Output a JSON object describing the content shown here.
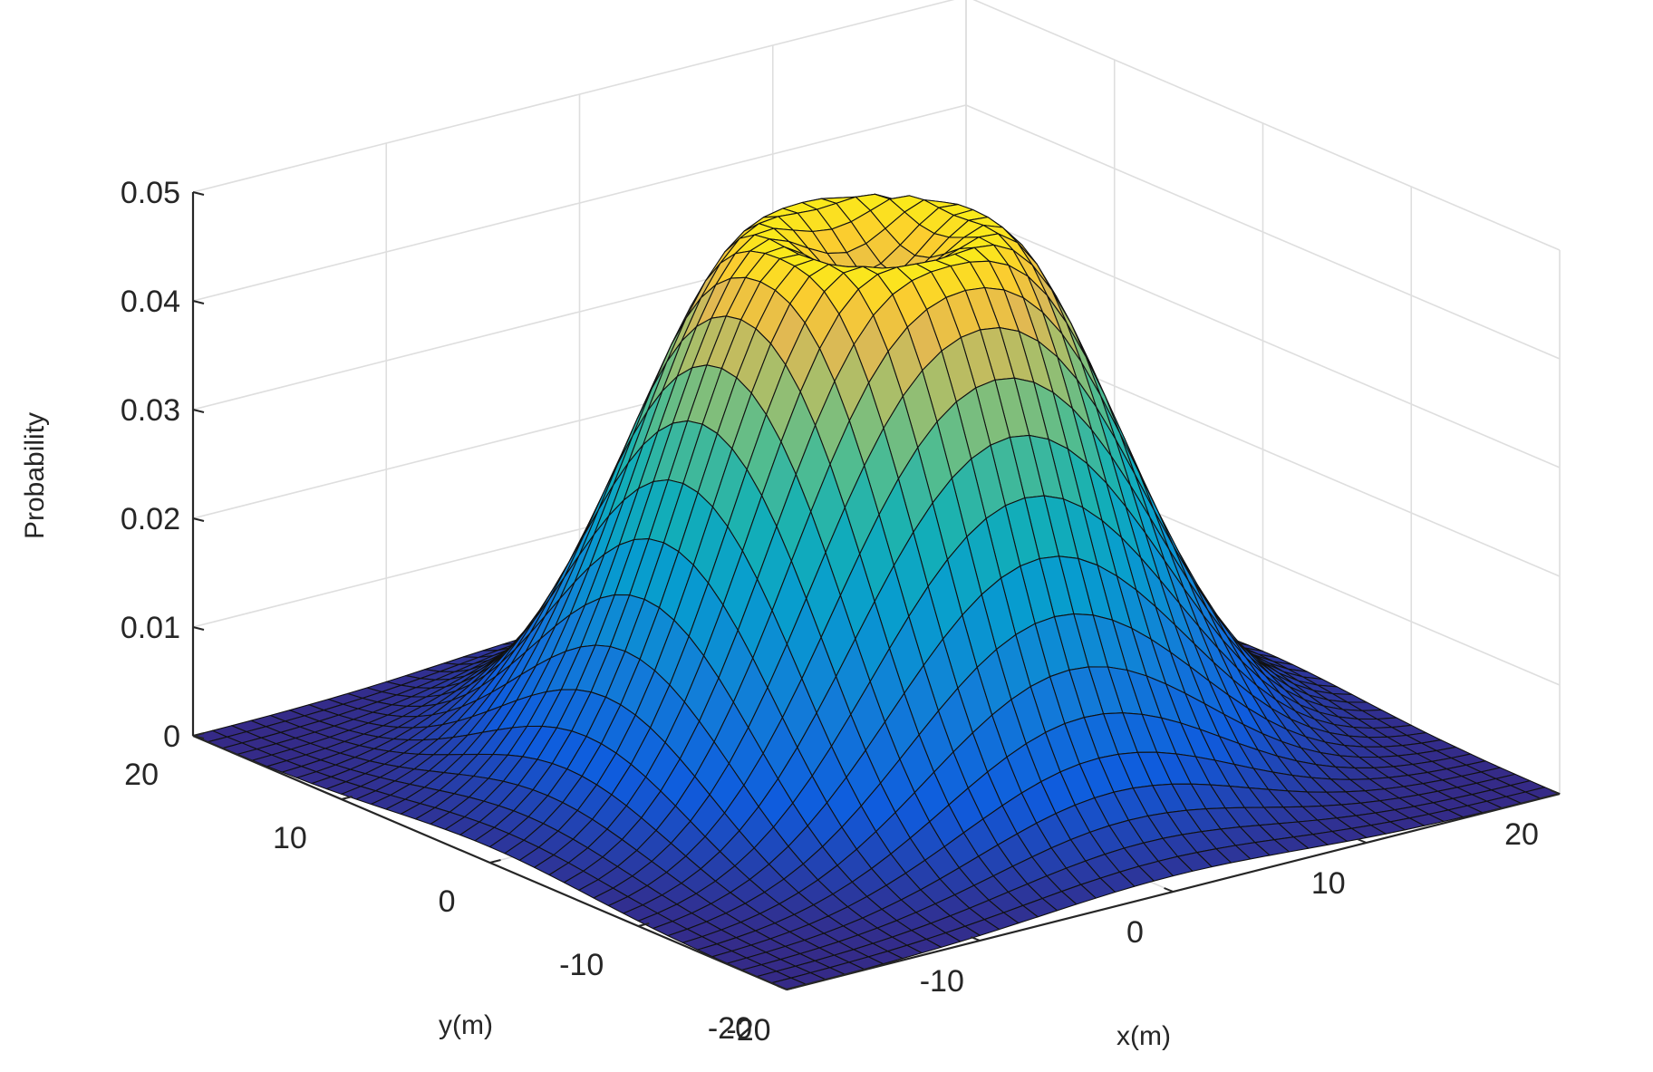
{
  "chart_data": {
    "type": "surface3d",
    "zlabel": "Probability",
    "xlabel": "x(m)",
    "ylabel": "y(m)",
    "xlim": [
      -20,
      20
    ],
    "ylim": [
      -20,
      20
    ],
    "zlim": [
      0,
      0.05
    ],
    "x_ticks": [
      -20,
      -10,
      0,
      10,
      20
    ],
    "y_ticks": [
      -20,
      -10,
      0,
      10,
      20
    ],
    "z_ticks": [
      0,
      0.01,
      0.02,
      0.03,
      0.04,
      0.05
    ],
    "x_tick_labels": [
      "-20",
      "-10",
      "0",
      "10",
      "20"
    ],
    "y_tick_labels": [
      "-20",
      "-10",
      "0",
      "10",
      "20"
    ],
    "z_tick_labels": [
      "0",
      "0.01",
      "0.02",
      "0.03",
      "0.04",
      "0.05"
    ],
    "grid": true,
    "colormap": "parula",
    "grid_points_per_axis": 41,
    "surface": {
      "shape": "radial bump with shallow central dip",
      "peak_value": 0.05,
      "peak_radius_m": 4,
      "center_value": 0.044,
      "edge_value": 0.0
    }
  }
}
